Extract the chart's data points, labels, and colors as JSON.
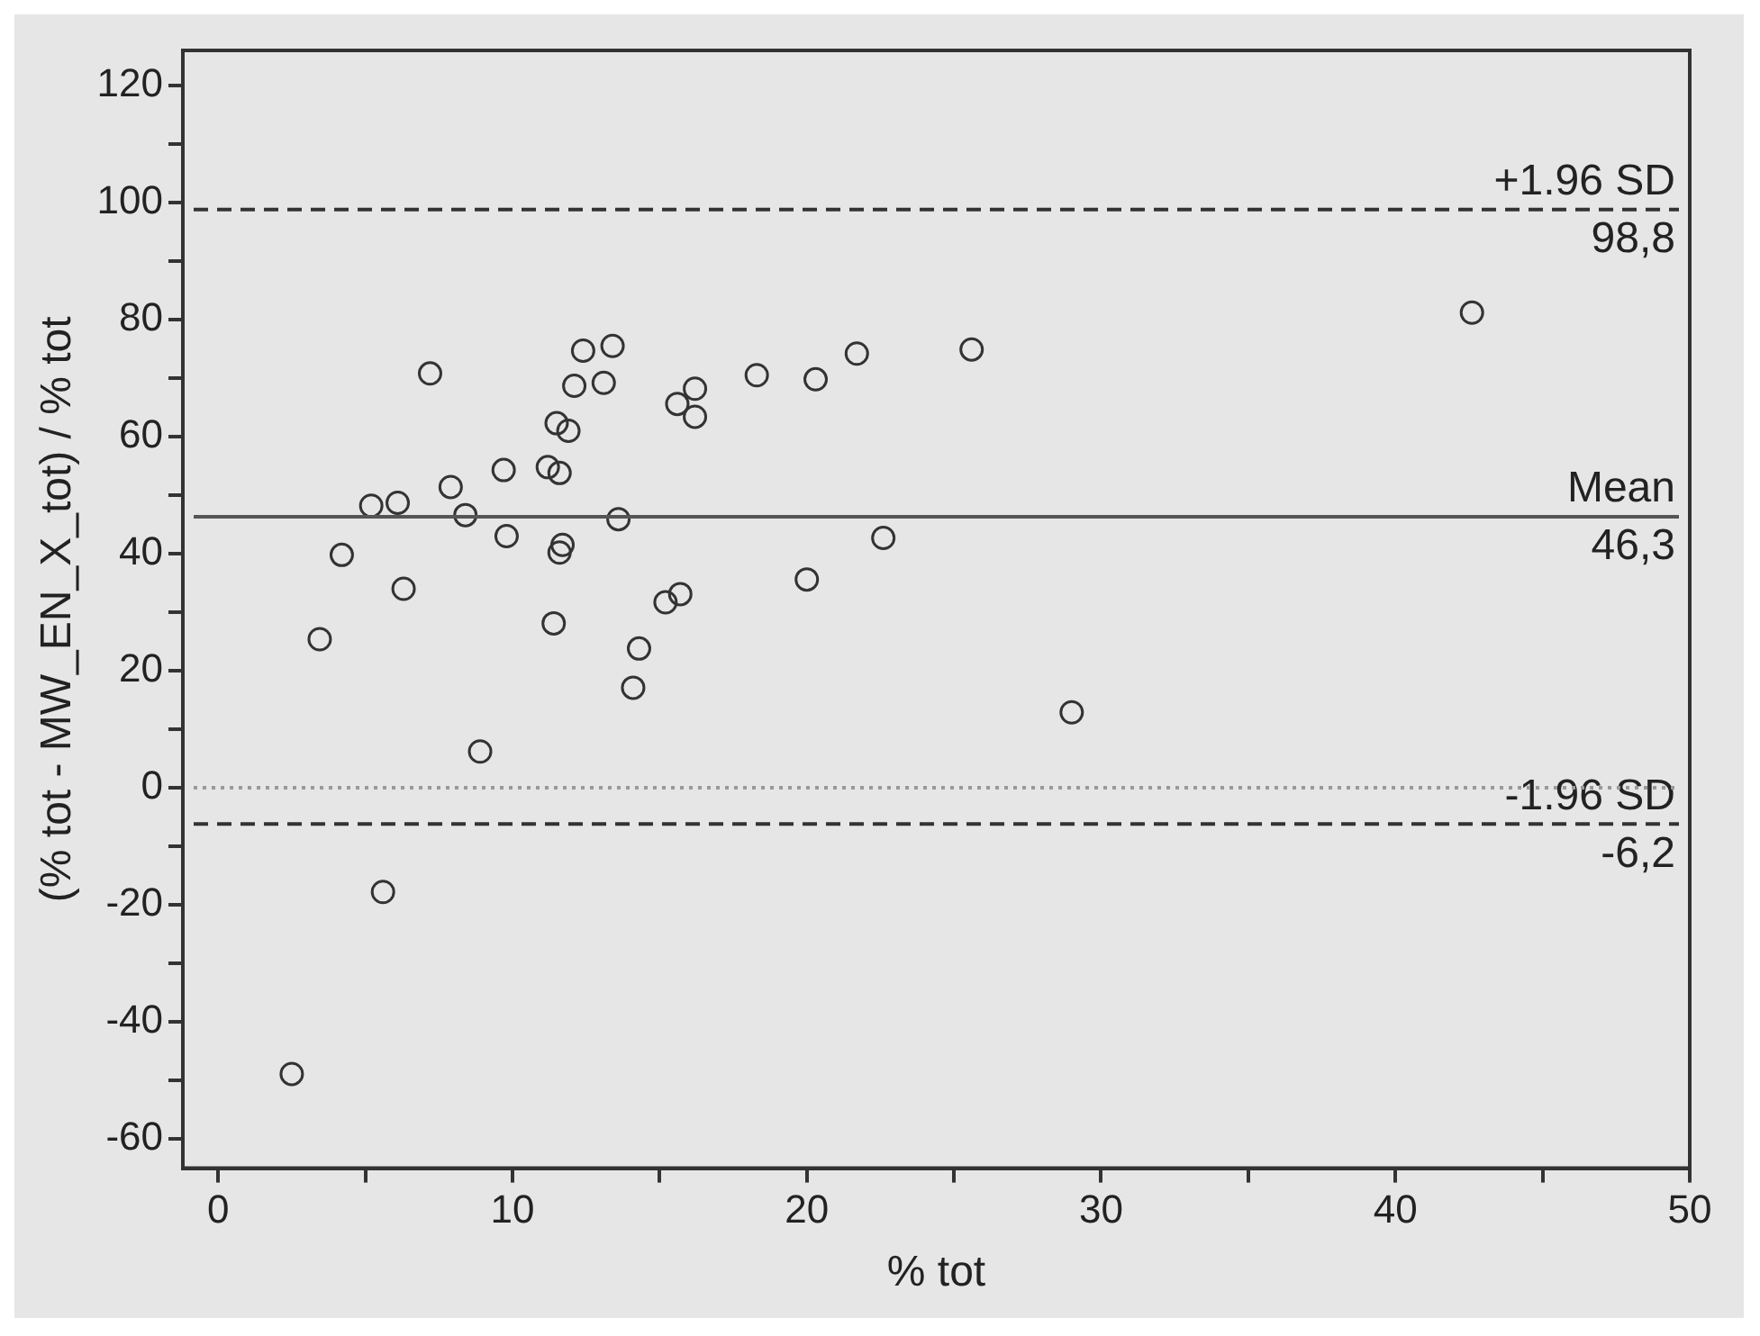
{
  "chart_data": {
    "type": "scatter",
    "xlabel": "% tot",
    "ylabel": "(% tot - MW_EN_X_tot) / % tot",
    "marker": "circle",
    "grid": false,
    "xlim": [
      -1.2,
      50
    ],
    "ylim": [
      -65,
      126
    ],
    "xticks": [
      0,
      {
        "value": 5,
        "label": null
      },
      10,
      {
        "value": 15,
        "label": null
      },
      20,
      {
        "value": 25,
        "label": null
      },
      30,
      {
        "value": 35,
        "label": null
      },
      40,
      {
        "value": 45,
        "label": null
      },
      50
    ],
    "yticks": [
      -60,
      {
        "value": -50,
        "label": null
      },
      -40,
      {
        "value": -30,
        "label": null
      },
      -20,
      {
        "value": -10,
        "label": null
      },
      0,
      {
        "value": 10,
        "label": null
      },
      20,
      {
        "value": 30,
        "label": null
      },
      40,
      {
        "value": 50,
        "label": null
      },
      60,
      {
        "value": 70,
        "label": null
      },
      80,
      {
        "value": 90,
        "label": null
      },
      100,
      {
        "value": 110,
        "label": null
      },
      120
    ],
    "series": [
      {
        "color": "#333333",
        "x": [
          7.2,
          3.45,
          4.2,
          5.2,
          6.1,
          6.3,
          7.9,
          8.4,
          8.9,
          9.7,
          9.8,
          11.2,
          11.6,
          11.5,
          11.9,
          12.1,
          12.4,
          13.1,
          13.4,
          11.7,
          11.6,
          11.4,
          13.6,
          14.3,
          14.1,
          15.2,
          15.7,
          15.6,
          16.2,
          16.2,
          18.3,
          20.3,
          21.7,
          25.6,
          42.6,
          20.0,
          22.6,
          29.0,
          5.6,
          2.5
        ],
        "values": [
          70.8,
          25.4,
          39.8,
          48.2,
          48.7,
          34.0,
          51.4,
          46.6,
          6.2,
          54.3,
          43.0,
          54.8,
          53.8,
          62.3,
          61.0,
          68.7,
          74.7,
          69.2,
          75.5,
          41.5,
          40.2,
          28.1,
          45.9,
          23.8,
          17.1,
          31.7,
          33.1,
          65.6,
          68.2,
          63.4,
          70.5,
          69.8,
          74.2,
          74.9,
          81.2,
          35.6,
          42.7,
          12.9,
          -17.8,
          -48.9
        ]
      }
    ],
    "ref_lines": [
      {
        "axis": "y",
        "value": 98.8,
        "label": "+1.96 SD",
        "line_style": "dashed",
        "color": "#333333"
      },
      {
        "axis": "y",
        "value": 46.3,
        "label": "Mean",
        "line_style": "solid",
        "color": "#555555"
      },
      {
        "axis": "y",
        "value": -6.2,
        "label": "-1.96 SD",
        "line_style": "dashed",
        "color": "#333333"
      },
      {
        "axis": "y",
        "value": 0,
        "line_style": "dotted",
        "color": "#999999"
      }
    ],
    "annotations": [
      {
        "text": "98,8",
        "y": 98.8
      },
      {
        "text": "46,3",
        "y": 46.3
      },
      {
        "text": "-6,2",
        "y": -6.2
      }
    ]
  }
}
